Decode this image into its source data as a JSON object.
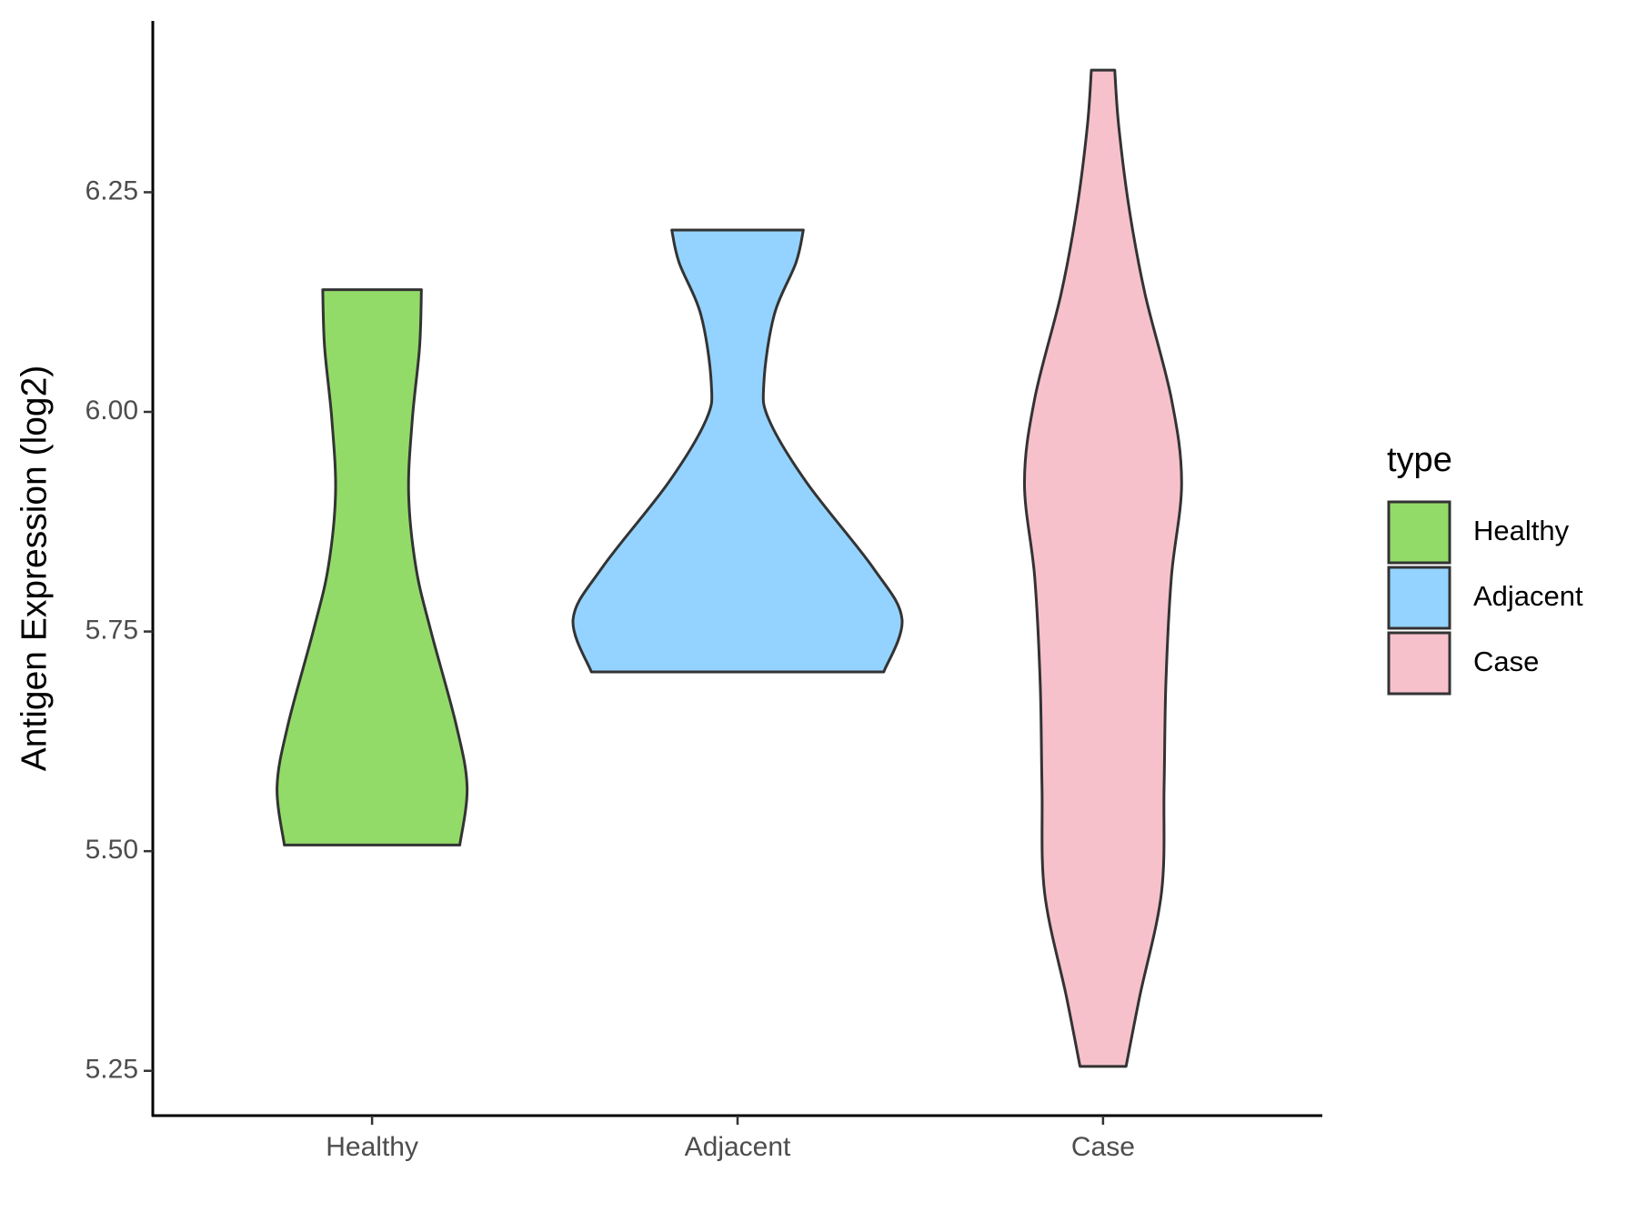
{
  "chart_data": {
    "type": "violin",
    "y_label": "Antigen Expression (log2)",
    "legend_title": "type",
    "categories": [
      "Healthy",
      "Adjacent",
      "Case"
    ],
    "ylim": [
      5.199,
      6.445
    ],
    "yticks": [
      {
        "value": 5.25,
        "label": "5.25"
      },
      {
        "value": 5.5,
        "label": "5.50"
      },
      {
        "value": 5.75,
        "label": "5.75"
      },
      {
        "value": 6.0,
        "label": "6.00"
      },
      {
        "value": 6.25,
        "label": "6.25"
      }
    ],
    "series": [
      {
        "name": "Healthy",
        "color": "#93db69",
        "y": [
          5.507,
          5.573,
          5.644,
          5.752,
          5.823,
          5.907,
          5.991,
          6.074,
          6.139
        ],
        "width": [
          0.24,
          0.26,
          0.23,
          0.16,
          0.12,
          0.1,
          0.11,
          0.13,
          0.135
        ]
      },
      {
        "name": "Adjacent",
        "color": "#94d3ff",
        "y": [
          5.704,
          5.764,
          5.823,
          5.919,
          5.991,
          6.033,
          6.11,
          6.17,
          6.207
        ],
        "width": [
          0.4,
          0.45,
          0.37,
          0.19,
          0.086,
          0.072,
          0.1,
          0.16,
          0.18
        ]
      },
      {
        "name": "Case",
        "color": "#f7c1cc",
        "y": [
          5.255,
          5.334,
          5.453,
          5.573,
          5.692,
          5.812,
          5.919,
          6.015,
          6.134,
          6.23,
          6.325,
          6.389
        ],
        "width": [
          0.063,
          0.1,
          0.16,
          0.167,
          0.172,
          0.187,
          0.215,
          0.187,
          0.115,
          0.072,
          0.043,
          0.032
        ]
      }
    ]
  }
}
